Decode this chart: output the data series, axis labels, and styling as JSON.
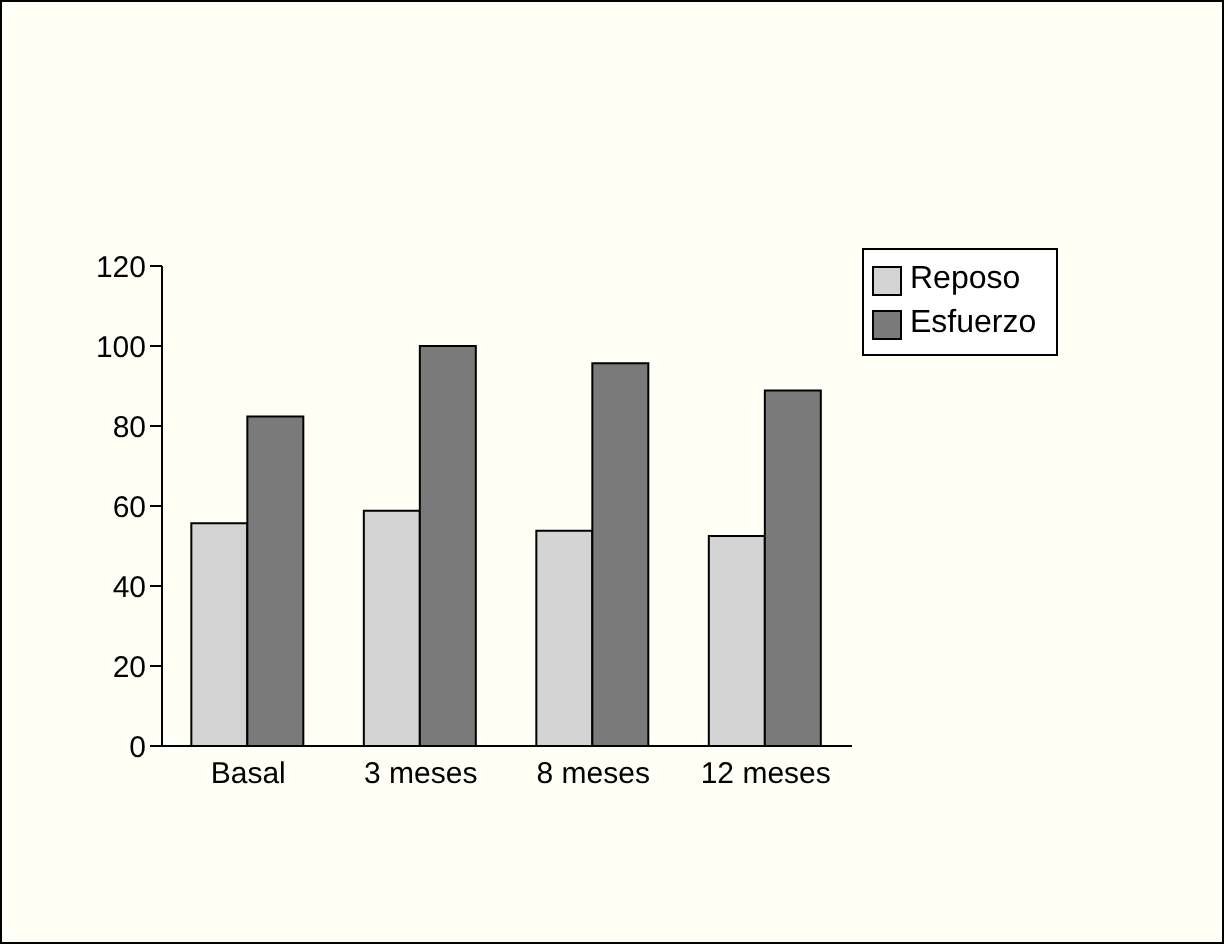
{
  "chart_data": {
    "type": "bar",
    "categories": [
      "Basal",
      "3 meses",
      "8 meses",
      "12 meses"
    ],
    "series": [
      {
        "name": "Reposo",
        "color": "#d4d4d4",
        "values": [
          55.7,
          58.8,
          53.8,
          52.5
        ]
      },
      {
        "name": "Esfuerzo",
        "color": "#7a7a7a",
        "values": [
          82.4,
          100,
          95.7,
          88.9
        ]
      }
    ],
    "ylim": [
      0,
      120
    ],
    "yticks": [
      0,
      20,
      40,
      60,
      80,
      100,
      120
    ],
    "grid": false,
    "legend": "top right"
  }
}
